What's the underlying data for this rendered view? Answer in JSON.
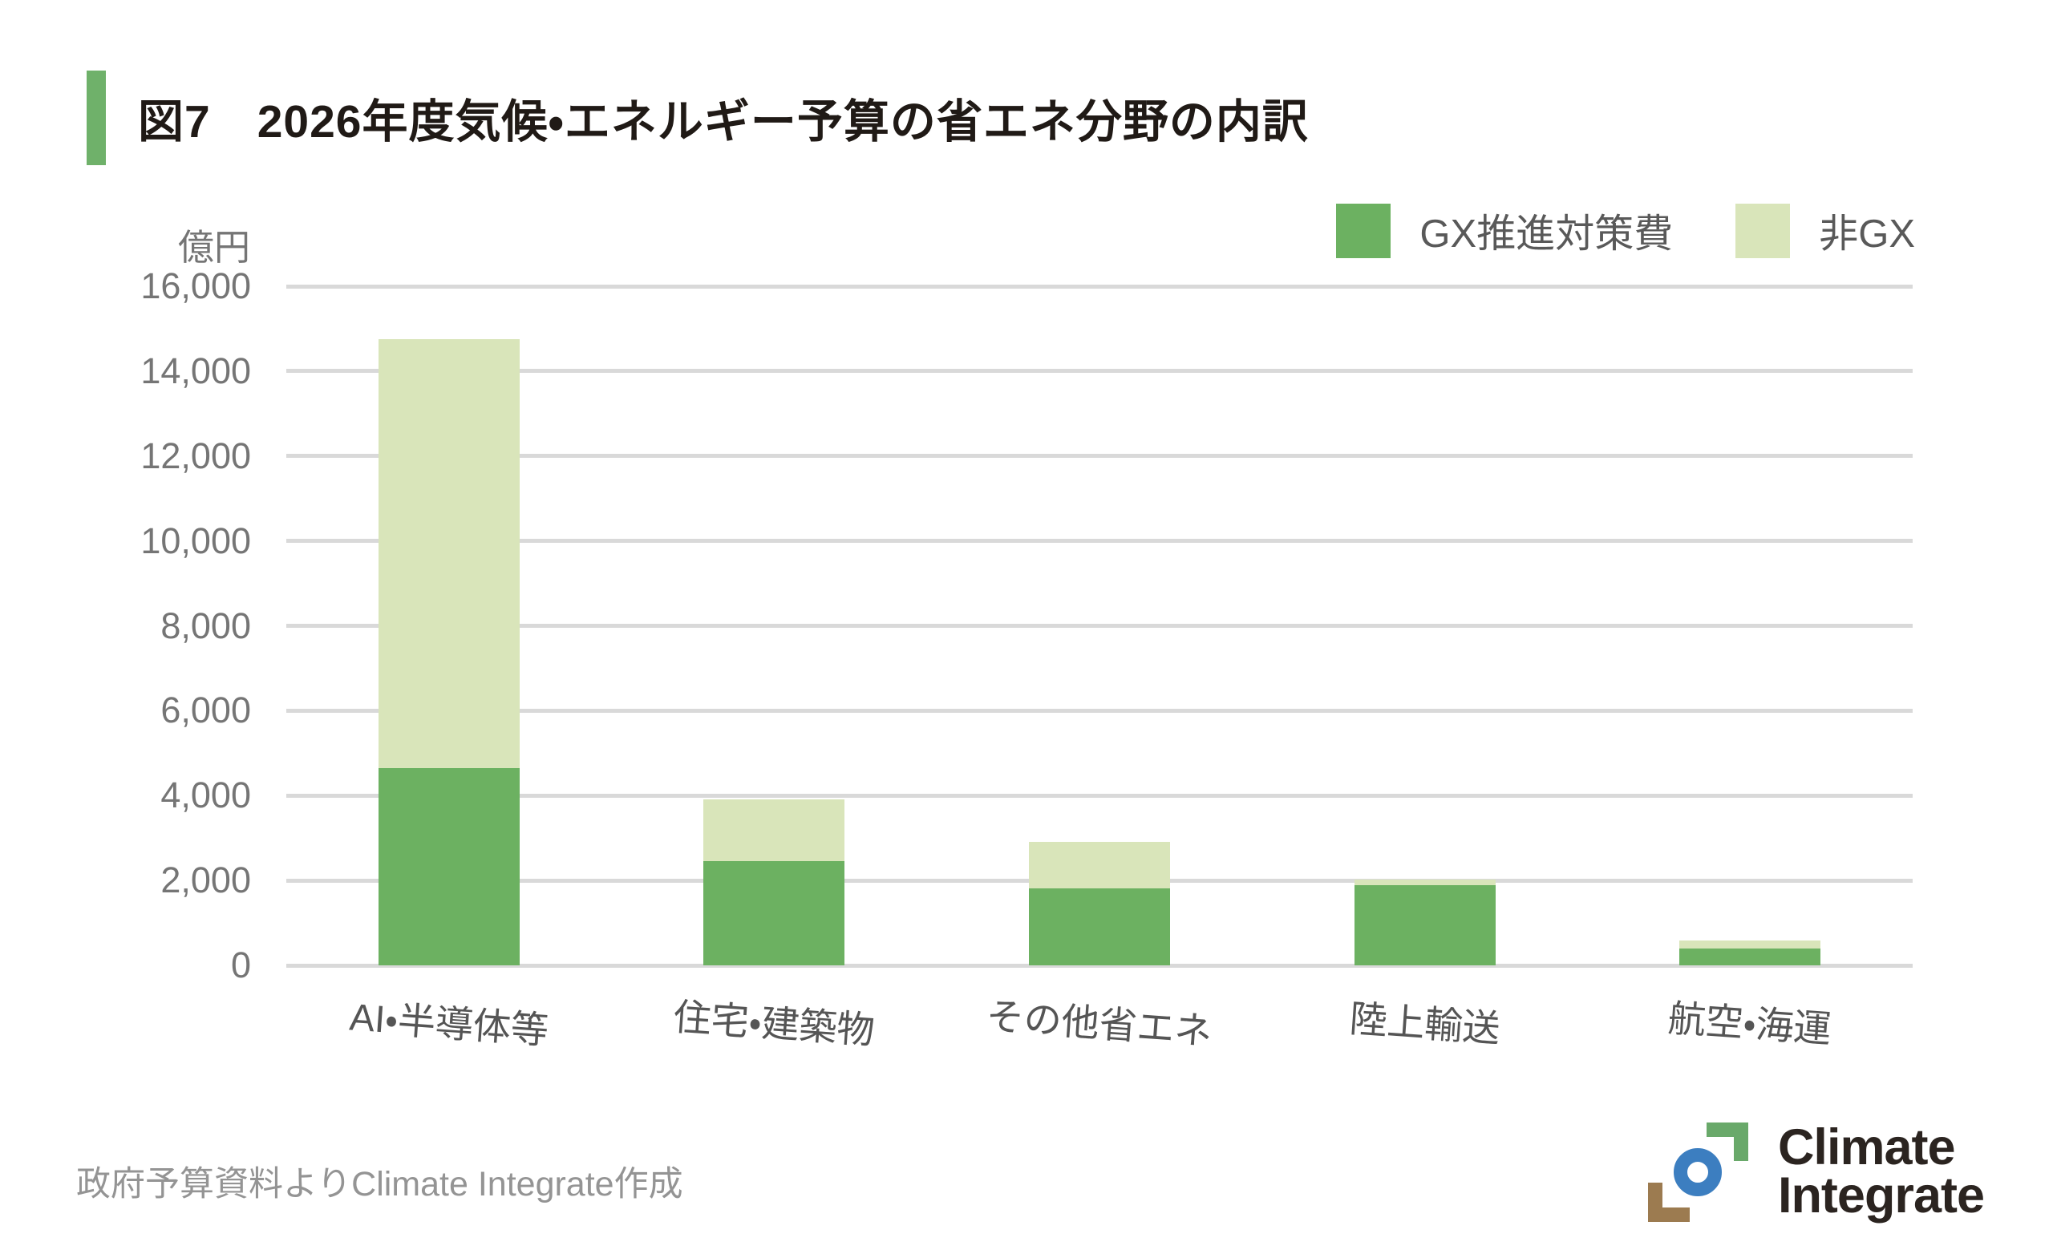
{
  "figure": {
    "title": "図7　2026年度気候・エネルギー予算の省エネ分野の内訳",
    "source_note": "政府予算資料よりClimate Integrate作成"
  },
  "logo": {
    "icon": "climate-integrate-mark",
    "line1": "Climate",
    "line2": "Integrate"
  },
  "colors": {
    "accent_bar": "#6fb16a",
    "gridline": "#d9d9d9",
    "y_tick_text": "#757575",
    "x_label_text": "#555555",
    "legend_text": "#595959",
    "title_text": "#201a16",
    "source_text": "#949494",
    "logo_blue": "#3c7ec0",
    "logo_green": "#69a96a",
    "logo_brown": "#9c7b50",
    "logo_text": "#2b2420"
  },
  "chart_data": {
    "type": "bar",
    "stacked": true,
    "title": "図7　2026年度気候・エネルギー予算の省エネ分野の内訳",
    "ylabel": "億円",
    "ylim": [
      0,
      16000
    ],
    "ytick_step": 2000,
    "grid": true,
    "legend_position": "top-right",
    "categories": [
      "AI・半導体等",
      "住宅・建築物",
      "その他省エネ",
      "陸上輸送",
      "航空・海運"
    ],
    "series": [
      {
        "name": "GX推進対策費",
        "color": "#6cb161",
        "values": [
          4650,
          2450,
          1820,
          1880,
          400
        ]
      },
      {
        "name": "非GX",
        "color": "#d9e5ba",
        "values": [
          10100,
          1470,
          1080,
          140,
          190
        ]
      }
    ],
    "totals": [
      14750,
      3920,
      2900,
      2020,
      590
    ]
  }
}
